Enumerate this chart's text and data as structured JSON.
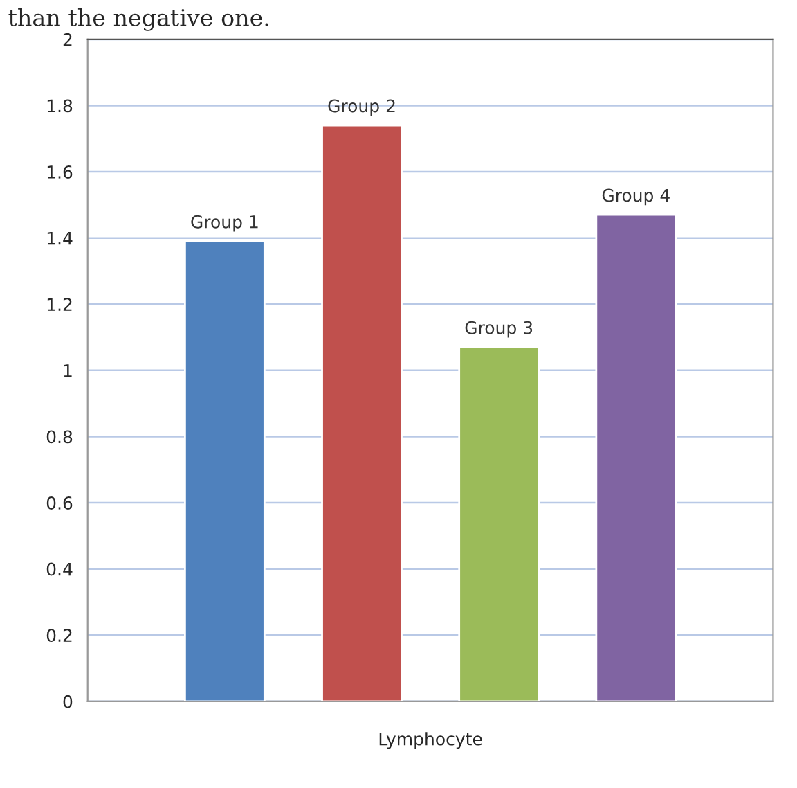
{
  "chart_data": {
    "type": "bar",
    "categories": [
      "Lymphocyte"
    ],
    "series": [
      {
        "name": "Group 1",
        "color": "#4f81bd",
        "values": [
          1.39
        ]
      },
      {
        "name": "Group 2",
        "color": "#c0504d",
        "values": [
          1.74
        ]
      },
      {
        "name": "Group 3",
        "color": "#9bbb59",
        "values": [
          1.07
        ]
      },
      {
        "name": "Group 4",
        "color": "#8064a2",
        "values": [
          1.47
        ]
      }
    ],
    "ylim": [
      0,
      2
    ],
    "yticks": [
      0,
      0.2,
      0.4,
      0.6,
      0.8,
      1,
      1.2,
      1.4,
      1.6,
      1.8,
      2
    ],
    "grid": "y",
    "legend": false,
    "annotations": [
      "than the negative one."
    ]
  }
}
